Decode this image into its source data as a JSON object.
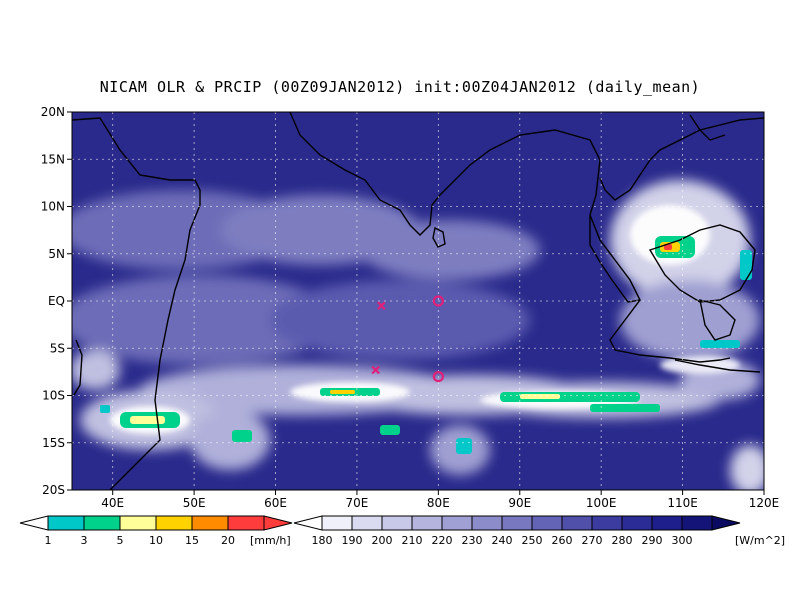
{
  "title": "NICAM OLR & PRCIP (00Z09JAN2012) init:00Z04JAN2012 (daily_mean)",
  "lat_labels": [
    "20N",
    "15N",
    "10N",
    "5N",
    "EQ",
    "5S",
    "10S",
    "15S",
    "20S"
  ],
  "lon_labels": [
    "40E",
    "50E",
    "60E",
    "70E",
    "80E",
    "90E",
    "100E",
    "110E",
    "120E"
  ],
  "precip_colorbar": {
    "ticks": [
      "1",
      "3",
      "5",
      "10",
      "15",
      "20"
    ],
    "unit": "[mm/h]",
    "colors": [
      "#00c8c8",
      "#00d28c",
      "#ffff9a",
      "#ffd200",
      "#ff8c00",
      "#ff3c3c"
    ]
  },
  "olr_colorbar": {
    "ticks": [
      "180",
      "190",
      "200",
      "210",
      "220",
      "230",
      "240",
      "250",
      "260",
      "270",
      "280",
      "290",
      "300"
    ],
    "unit": "[W/m^2]",
    "colors": [
      "#f0f0fa",
      "#dadaf0",
      "#c8c8e8",
      "#b4b4de",
      "#a0a0d4",
      "#8c8cca",
      "#7878c0",
      "#6464b6",
      "#5050aa",
      "#3c3ca0",
      "#2c2c96",
      "#1e1e8c",
      "#141478"
    ]
  },
  "markers": [
    {
      "type": "cross",
      "lon": 73,
      "lat": -0.5
    },
    {
      "type": "cross",
      "lon": 72.3,
      "lat": -7.3
    },
    {
      "type": "circle",
      "lon": 80,
      "lat": 0
    },
    {
      "type": "circle",
      "lon": 80,
      "lat": -8
    }
  ],
  "colors": {
    "ocean": "#2a2a8c",
    "cloud_white": "#ffffff",
    "marker": "#e0207a"
  }
}
